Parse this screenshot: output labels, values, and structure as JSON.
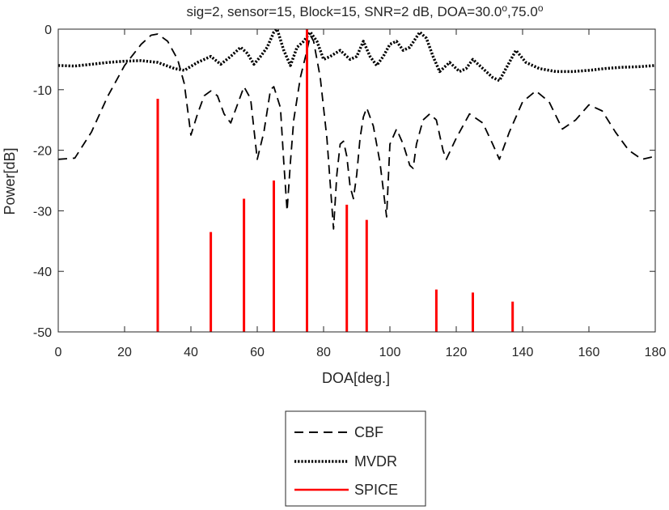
{
  "chart_data": {
    "type": "line",
    "title": "sig=2, sensor=15, Block=15, SNR=2 dB, DOA=30.0",
    "title_doa2": ",75.0",
    "title_degree": "o",
    "xlabel": "DOA[deg.]",
    "ylabel": "Power[dB]",
    "xlim": [
      0,
      180
    ],
    "ylim": [
      -50,
      0
    ],
    "xticks": [
      "0",
      "20",
      "40",
      "60",
      "80",
      "100",
      "120",
      "140",
      "160",
      "180"
    ],
    "yticks": [
      "0",
      "-10",
      "-20",
      "-30",
      "-40",
      "-50"
    ],
    "grid": false,
    "legend_position": "bottom-center",
    "series": [
      {
        "name": "CBF",
        "style": "dashed",
        "color": "#000000",
        "x": [
          0,
          5,
          10,
          15,
          20,
          25,
          28,
          30,
          33,
          36,
          38,
          40,
          42,
          44,
          46,
          48,
          50,
          52,
          54,
          56,
          58,
          60,
          62,
          64,
          65,
          67,
          68,
          69,
          70,
          71,
          73,
          75,
          76,
          77,
          79,
          81,
          83,
          84,
          85,
          86,
          87,
          88,
          89,
          90,
          91,
          92,
          93,
          95,
          97,
          99,
          100,
          102,
          104,
          106,
          107,
          108,
          110,
          112,
          114,
          116,
          117,
          120,
          124,
          128,
          131,
          133,
          136,
          140,
          144,
          148,
          152,
          156,
          160,
          164,
          168,
          172,
          176,
          180
        ],
        "y": [
          -21.5,
          -21.3,
          -17,
          -11,
          -6,
          -2.5,
          -1,
          -0.8,
          -2,
          -5,
          -9,
          -17.5,
          -14,
          -11,
          -10.2,
          -11,
          -14,
          -15.5,
          -12.5,
          -9.5,
          -11.5,
          -21.5,
          -17,
          -10,
          -9.5,
          -13,
          -22,
          -30,
          -22,
          -15,
          -8,
          -3.5,
          -1,
          -2,
          -8,
          -18,
          -33,
          -24,
          -19,
          -18.5,
          -21,
          -26,
          -28,
          -24,
          -18,
          -14.5,
          -13,
          -16,
          -22,
          -31,
          -19,
          -16.5,
          -19,
          -22.5,
          -23,
          -19,
          -15,
          -14,
          -15,
          -20,
          -21.5,
          -18,
          -14,
          -15.5,
          -19,
          -21.5,
          -17,
          -12,
          -10.2,
          -12,
          -16.5,
          -15,
          -12.5,
          -13.5,
          -17,
          -20,
          -21.5,
          -21
        ]
      },
      {
        "name": "MVDR",
        "style": "dotted",
        "color": "#000000",
        "x": [
          0,
          5,
          10,
          15,
          20,
          25,
          30,
          35,
          38,
          42,
          46,
          49,
          52,
          55,
          57,
          59,
          61,
          63,
          65,
          66,
          68,
          70,
          72,
          74,
          76,
          78,
          80,
          82,
          85,
          88,
          90,
          92,
          94,
          96,
          98,
          100,
          102,
          104,
          106,
          109,
          111,
          113,
          115,
          118,
          121,
          123,
          125,
          128,
          131,
          133,
          136,
          138,
          141,
          145,
          150,
          155,
          160,
          165,
          170,
          175,
          180
        ],
        "y": [
          -6,
          -6.1,
          -5.8,
          -5.5,
          -5.3,
          -5.2,
          -5.5,
          -6.5,
          -6.8,
          -5.5,
          -4.5,
          -5.8,
          -4.5,
          -3,
          -4,
          -5.8,
          -4.5,
          -3,
          -0.5,
          0,
          -3.5,
          -6,
          -3,
          -2,
          -0.5,
          -2,
          -5,
          -4.5,
          -3.5,
          -5,
          -4.5,
          -2,
          -4.5,
          -6,
          -4.5,
          -2.5,
          -2,
          -3.5,
          -3,
          -0.5,
          -1.5,
          -4.5,
          -7,
          -5.5,
          -7,
          -6.5,
          -5,
          -6.5,
          -8,
          -8.5,
          -5.5,
          -3.5,
          -5.5,
          -6.5,
          -7,
          -7,
          -6.8,
          -6.5,
          -6.3,
          -6.2,
          -6
        ]
      },
      {
        "name": "SPICE",
        "style": "stem",
        "color": "#ff0000",
        "x": [
          30,
          46,
          56,
          65,
          75,
          87,
          93,
          114,
          125,
          137
        ],
        "y": [
          -11.5,
          -33.5,
          -28,
          -25,
          0,
          -29,
          -31.5,
          -43,
          -43.5,
          -45
        ]
      }
    ]
  },
  "legend": {
    "items": [
      {
        "label": "CBF"
      },
      {
        "label": "MVDR"
      },
      {
        "label": "SPICE"
      }
    ]
  }
}
